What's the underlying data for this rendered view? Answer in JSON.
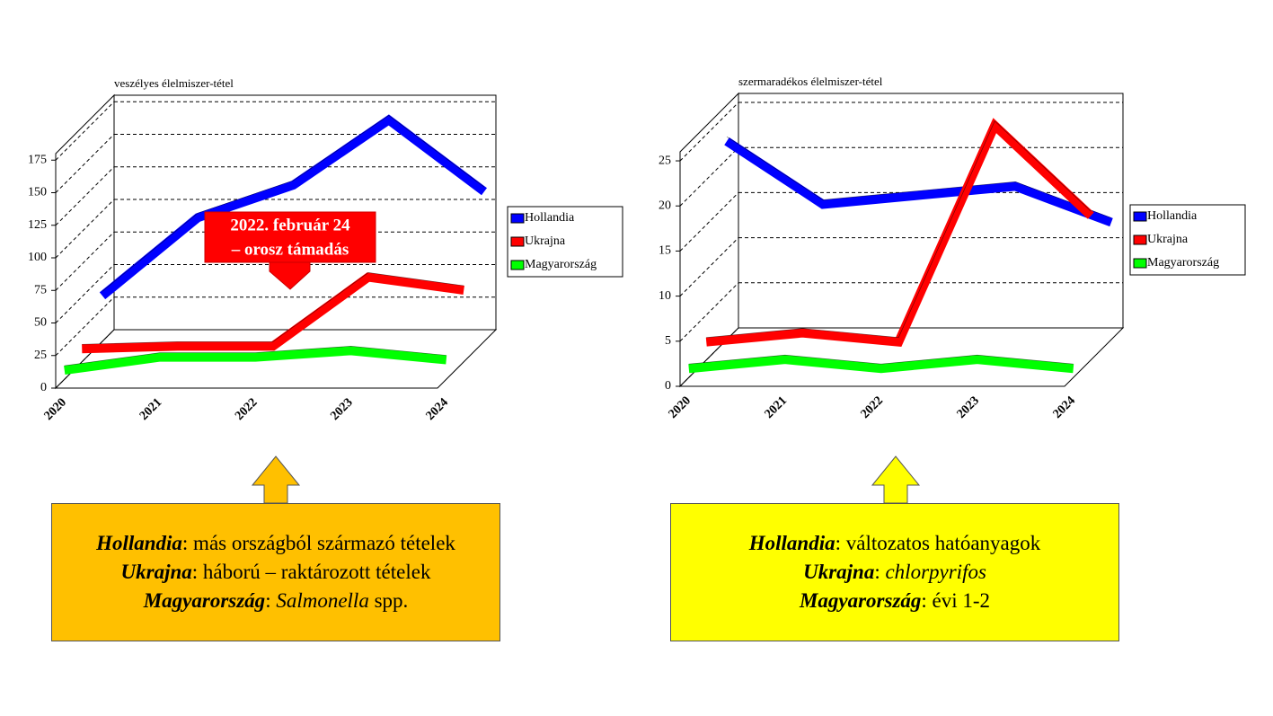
{
  "chart_data": [
    {
      "type": "line3d",
      "title": "veszélyes élelmiszer-tétel",
      "categories": [
        "2020",
        "2021",
        "2022",
        "2023",
        "2024"
      ],
      "series": [
        {
          "name": "Hollandia",
          "color": "#0000ff",
          "values": [
            35,
            95,
            120,
            170,
            115
          ]
        },
        {
          "name": "Ukrajna",
          "color": "#ff0000",
          "values": [
            10,
            12,
            12,
            65,
            55
          ]
        },
        {
          "name": "Magyarország",
          "color": "#00ff00",
          "values": [
            7,
            17,
            17,
            22,
            15
          ]
        }
      ],
      "ylim": [
        0,
        180
      ],
      "yticks": [
        0,
        25,
        50,
        75,
        100,
        125,
        150,
        175
      ],
      "grid": true,
      "legend": "right",
      "annotation": [
        "2022. február 24",
        "– orosz támadás"
      ]
    },
    {
      "type": "line3d",
      "title": "szermaradékos élelmiszer-tétel",
      "categories": [
        "2020",
        "2021",
        "2022",
        "2023",
        "2024"
      ],
      "series": [
        {
          "name": "Hollandia",
          "color": "#0000ff",
          "values": [
            22,
            15,
            16,
            17,
            13
          ]
        },
        {
          "name": "Ukrajna",
          "color": "#ff0000",
          "values": [
            2,
            3,
            2,
            26,
            16
          ]
        },
        {
          "name": "Magyarország",
          "color": "#00ff00",
          "values": [
            1,
            2,
            1,
            2,
            1
          ]
        }
      ],
      "ylim": [
        0,
        26
      ],
      "yticks": [
        0,
        5,
        10,
        15,
        20,
        25
      ],
      "grid": true,
      "legend": "right"
    }
  ],
  "captions": [
    {
      "color": "#ffc000",
      "lines": [
        [
          {
            "text": "Hollandia",
            "style": "bold-italic"
          },
          {
            "text": ": más országból származó tételek"
          }
        ],
        [
          {
            "text": "Ukrajna",
            "style": "bold-italic"
          },
          {
            "text": ": háború – raktározott tételek"
          }
        ],
        [
          {
            "text": "Magyarország",
            "style": "bold-italic"
          },
          {
            "text": ": "
          },
          {
            "text": "Salmonella",
            "style": "italic"
          },
          {
            "text": " spp."
          }
        ]
      ]
    },
    {
      "color": "#ffff00",
      "lines": [
        [
          {
            "text": "Hollandia",
            "style": "bold-italic"
          },
          {
            "text": ": változatos hatóanyagok"
          }
        ],
        [
          {
            "text": "Ukrajna",
            "style": "bold-italic"
          },
          {
            "text": ": "
          },
          {
            "text": "chlorpyrifos",
            "style": "italic"
          }
        ],
        [
          {
            "text": "Magyarország",
            "style": "bold-italic"
          },
          {
            "text": ": évi 1-2"
          }
        ]
      ]
    }
  ]
}
